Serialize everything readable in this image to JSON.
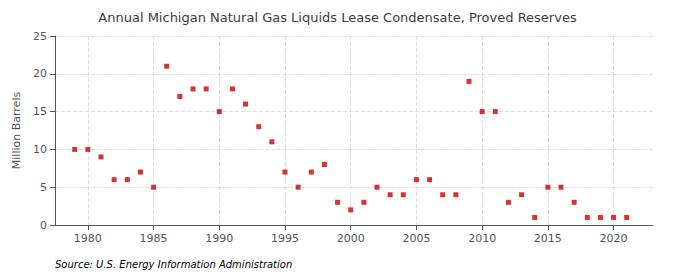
{
  "chart_data": {
    "type": "scatter",
    "title": "Annual Michigan Natural Gas Liquids Lease Condensate, Proved Reserves",
    "ylabel": "Million Barrels",
    "annotations": [
      "Source: U.S. Energy Information Administration"
    ],
    "x": [
      1979,
      1980,
      1981,
      1982,
      1983,
      1984,
      1985,
      1986,
      1987,
      1988,
      1989,
      1990,
      1991,
      1992,
      1993,
      1994,
      1995,
      1996,
      1997,
      1998,
      1999,
      2000,
      2001,
      2002,
      2003,
      2004,
      2005,
      2006,
      2007,
      2008,
      2009,
      2010,
      2011,
      2012,
      2013,
      2014,
      2015,
      2016,
      2017,
      2018,
      2019,
      2020,
      2021
    ],
    "values": [
      10,
      10,
      9,
      6,
      6,
      7,
      5,
      21,
      17,
      18,
      18,
      15,
      18,
      16,
      13,
      11,
      7,
      5,
      7,
      8,
      3,
      2,
      3,
      5,
      4,
      4,
      6,
      6,
      4,
      4,
      19,
      15,
      15,
      3,
      4,
      1,
      5,
      5,
      3,
      1,
      1,
      1,
      1
    ],
    "color": "#cc0000",
    "marker": "square",
    "xlim": [
      1977.5,
      2023
    ],
    "xticks": [
      1980,
      1985,
      1990,
      1995,
      2000,
      2005,
      2010,
      2015,
      2020
    ],
    "ylim": [
      0,
      25
    ],
    "yticks": [
      0,
      5,
      10,
      15,
      20,
      25
    ],
    "grid": true
  }
}
